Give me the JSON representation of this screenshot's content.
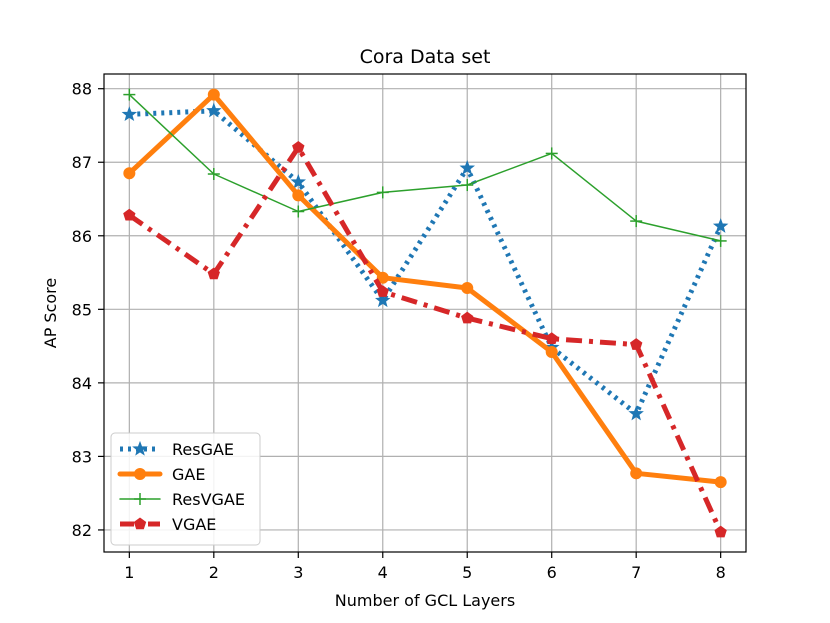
{
  "chart_data": {
    "type": "line",
    "title": "Cora Data set",
    "xlabel": "Number of GCL Layers",
    "ylabel": "AP Score",
    "x": [
      1,
      2,
      3,
      4,
      5,
      6,
      7,
      8
    ],
    "xlim": [
      0.7,
      8.3
    ],
    "ylim": [
      81.7,
      88.2
    ],
    "x_ticks": [
      "1",
      "2",
      "3",
      "4",
      "5",
      "6",
      "7",
      "8"
    ],
    "y_ticks": [
      "82",
      "83",
      "84",
      "85",
      "86",
      "87",
      "88"
    ],
    "grid": true,
    "legend_position": "lower-left",
    "series": [
      {
        "name": "ResGAE",
        "values": [
          87.65,
          87.7,
          86.73,
          85.12,
          86.92,
          84.48,
          83.58,
          86.13
        ],
        "color": "#1f77b4",
        "marker": "star",
        "style": "dotted"
      },
      {
        "name": "GAE",
        "values": [
          86.85,
          87.92,
          86.55,
          85.43,
          85.29,
          84.42,
          82.77,
          82.65
        ],
        "color": "#ff7f0e",
        "marker": "circle",
        "style": "solid"
      },
      {
        "name": "ResVGAE",
        "values": [
          87.92,
          86.84,
          86.33,
          86.59,
          86.69,
          87.12,
          86.2,
          85.93
        ],
        "color": "#2ca02c",
        "marker": "plus",
        "style": "solid-thin"
      },
      {
        "name": "VGAE",
        "values": [
          86.28,
          85.48,
          87.2,
          85.24,
          84.88,
          84.6,
          84.52,
          81.97
        ],
        "color": "#d62728",
        "marker": "pentagon",
        "style": "dashdot"
      }
    ]
  }
}
